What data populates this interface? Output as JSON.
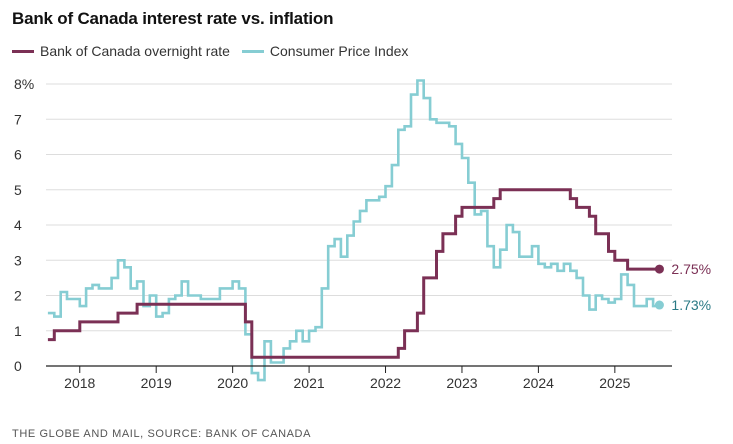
{
  "header": {
    "title": "Bank of Canada interest rate vs. inflation"
  },
  "footer": {
    "source": "THE GLOBE AND MAIL, SOURCE: BANK OF CANADA"
  },
  "colors": {
    "policy_rate": "#7b3055",
    "cpi": "#86cdd3",
    "axis": "#222222",
    "grid": "#dddddd",
    "cpi_label": "#2a7a85"
  },
  "chart_data": {
    "type": "line",
    "step": true,
    "title": "Bank of Canada interest rate vs. inflation",
    "xlabel": "",
    "ylabel": "",
    "ylim": [
      0,
      8
    ],
    "xlim": [
      "2017-08",
      "2025-08"
    ],
    "x_ticks": [
      "2018",
      "2019",
      "2020",
      "2021",
      "2022",
      "2023",
      "2024",
      "2025"
    ],
    "y_ticks": [
      "0",
      "1",
      "2",
      "3",
      "4",
      "5",
      "6",
      "7",
      "8%"
    ],
    "grid": "horizontal",
    "legend": "top-left",
    "series": [
      {
        "name": "Bank of Canada overnight rate",
        "end_label": "2.75%",
        "points": [
          [
            "2017-08",
            0.75
          ],
          [
            "2017-09",
            1.0
          ],
          [
            "2018-01",
            1.25
          ],
          [
            "2018-07",
            1.5
          ],
          [
            "2018-10",
            1.75
          ],
          [
            "2020-03",
            1.25
          ],
          [
            "2020-04",
            0.25
          ],
          [
            "2022-03",
            0.5
          ],
          [
            "2022-04",
            1.0
          ],
          [
            "2022-06",
            1.5
          ],
          [
            "2022-07",
            2.5
          ],
          [
            "2022-09",
            3.25
          ],
          [
            "2022-10",
            3.75
          ],
          [
            "2022-12",
            4.25
          ],
          [
            "2023-01",
            4.5
          ],
          [
            "2023-06",
            4.75
          ],
          [
            "2023-07",
            5.0
          ],
          [
            "2024-06",
            4.75
          ],
          [
            "2024-07",
            4.5
          ],
          [
            "2024-09",
            4.25
          ],
          [
            "2024-10",
            3.75
          ],
          [
            "2024-12",
            3.25
          ],
          [
            "2025-01",
            3.0
          ],
          [
            "2025-03",
            2.75
          ],
          [
            "2025-08",
            2.75
          ]
        ]
      },
      {
        "name": "Consumer Price Index",
        "end_label": "1.73%",
        "points": [
          [
            "2017-08",
            1.5
          ],
          [
            "2017-09",
            1.4
          ],
          [
            "2017-10",
            2.1
          ],
          [
            "2017-11",
            1.9
          ],
          [
            "2017-12",
            1.9
          ],
          [
            "2018-01",
            1.7
          ],
          [
            "2018-02",
            2.2
          ],
          [
            "2018-03",
            2.3
          ],
          [
            "2018-04",
            2.2
          ],
          [
            "2018-05",
            2.2
          ],
          [
            "2018-06",
            2.5
          ],
          [
            "2018-07",
            3.0
          ],
          [
            "2018-08",
            2.8
          ],
          [
            "2018-09",
            2.2
          ],
          [
            "2018-10",
            2.4
          ],
          [
            "2018-11",
            1.7
          ],
          [
            "2018-12",
            2.0
          ],
          [
            "2019-01",
            1.4
          ],
          [
            "2019-02",
            1.5
          ],
          [
            "2019-03",
            1.9
          ],
          [
            "2019-04",
            2.0
          ],
          [
            "2019-05",
            2.4
          ],
          [
            "2019-06",
            2.0
          ],
          [
            "2019-07",
            2.0
          ],
          [
            "2019-08",
            1.9
          ],
          [
            "2019-09",
            1.9
          ],
          [
            "2019-10",
            1.9
          ],
          [
            "2019-11",
            2.2
          ],
          [
            "2019-12",
            2.2
          ],
          [
            "2020-01",
            2.4
          ],
          [
            "2020-02",
            2.2
          ],
          [
            "2020-03",
            0.9
          ],
          [
            "2020-04",
            -0.2
          ],
          [
            "2020-05",
            -0.4
          ],
          [
            "2020-06",
            0.7
          ],
          [
            "2020-07",
            0.1
          ],
          [
            "2020-08",
            0.1
          ],
          [
            "2020-09",
            0.5
          ],
          [
            "2020-10",
            0.7
          ],
          [
            "2020-11",
            1.0
          ],
          [
            "2020-12",
            0.7
          ],
          [
            "2021-01",
            1.0
          ],
          [
            "2021-02",
            1.1
          ],
          [
            "2021-03",
            2.2
          ],
          [
            "2021-04",
            3.4
          ],
          [
            "2021-05",
            3.6
          ],
          [
            "2021-06",
            3.1
          ],
          [
            "2021-07",
            3.7
          ],
          [
            "2021-08",
            4.1
          ],
          [
            "2021-09",
            4.4
          ],
          [
            "2021-10",
            4.7
          ],
          [
            "2021-11",
            4.7
          ],
          [
            "2021-12",
            4.8
          ],
          [
            "2022-01",
            5.1
          ],
          [
            "2022-02",
            5.7
          ],
          [
            "2022-03",
            6.7
          ],
          [
            "2022-04",
            6.8
          ],
          [
            "2022-05",
            7.7
          ],
          [
            "2022-06",
            8.1
          ],
          [
            "2022-07",
            7.6
          ],
          [
            "2022-08",
            7.0
          ],
          [
            "2022-09",
            6.9
          ],
          [
            "2022-10",
            6.9
          ],
          [
            "2022-11",
            6.8
          ],
          [
            "2022-12",
            6.3
          ],
          [
            "2023-01",
            5.9
          ],
          [
            "2023-02",
            5.2
          ],
          [
            "2023-03",
            4.3
          ],
          [
            "2023-04",
            4.4
          ],
          [
            "2023-05",
            3.4
          ],
          [
            "2023-06",
            2.8
          ],
          [
            "2023-07",
            3.3
          ],
          [
            "2023-08",
            4.0
          ],
          [
            "2023-09",
            3.8
          ],
          [
            "2023-10",
            3.1
          ],
          [
            "2023-11",
            3.1
          ],
          [
            "2023-12",
            3.4
          ],
          [
            "2024-01",
            2.9
          ],
          [
            "2024-02",
            2.8
          ],
          [
            "2024-03",
            2.9
          ],
          [
            "2024-04",
            2.7
          ],
          [
            "2024-05",
            2.9
          ],
          [
            "2024-06",
            2.7
          ],
          [
            "2024-07",
            2.5
          ],
          [
            "2024-08",
            2.0
          ],
          [
            "2024-09",
            1.6
          ],
          [
            "2024-10",
            2.0
          ],
          [
            "2024-11",
            1.9
          ],
          [
            "2024-12",
            1.8
          ],
          [
            "2025-01",
            1.9
          ],
          [
            "2025-02",
            2.6
          ],
          [
            "2025-03",
            2.3
          ],
          [
            "2025-04",
            1.7
          ],
          [
            "2025-05",
            1.7
          ],
          [
            "2025-06",
            1.9
          ],
          [
            "2025-07",
            1.7
          ],
          [
            "2025-08",
            1.73
          ]
        ]
      }
    ]
  }
}
